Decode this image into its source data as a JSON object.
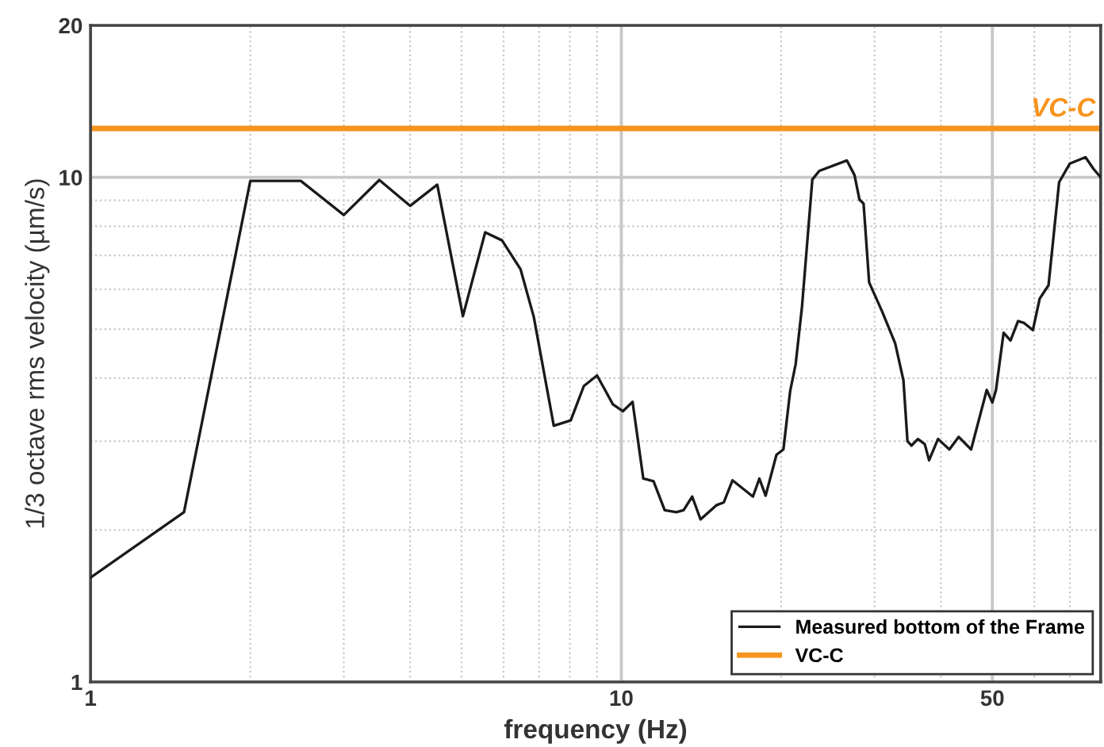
{
  "chart_data": {
    "type": "line",
    "xlabel": "frequency (Hz)",
    "ylabel": "1/3 octave rms velocity (µm/s)",
    "series": [
      {
        "name": "Measured bottom of the Frame",
        "color": "#1a1a1a",
        "x": [
          1,
          1.5,
          2.0,
          2.49,
          3.0,
          3.5,
          4.0,
          4.5,
          5.03,
          5.54,
          5.96,
          6.46,
          6.84,
          7.46,
          8.03,
          8.5,
          9.0,
          9.64,
          10.07,
          10.5,
          11.0,
          11.5,
          12.07,
          12.7,
          13.1,
          13.6,
          14.1,
          15.1,
          15.6,
          16.2,
          17.7,
          18.2,
          18.7,
          19.6,
          20.2,
          20.8,
          21.3,
          21.9,
          22.9,
          23.6,
          26.6,
          27.5,
          28.1,
          28.6,
          29.3,
          31.0,
          32.8,
          34.0,
          34.6,
          35.2,
          36.2,
          37.3,
          38.0,
          39.5,
          41.5,
          43.2,
          45.6,
          48.8,
          50.0,
          50.8,
          52.5,
          54.1,
          55.9,
          57.3,
          59.6,
          61.4,
          63.8,
          66.8,
          70.0,
          74.9,
          77.5,
          80
        ],
        "values": [
          1.61,
          2.17,
          9.84,
          9.84,
          8.42,
          9.88,
          8.78,
          9.67,
          5.31,
          7.78,
          7.5,
          6.57,
          5.29,
          3.22,
          3.3,
          3.86,
          4.05,
          3.55,
          3.44,
          3.59,
          2.53,
          2.5,
          2.19,
          2.17,
          2.19,
          2.33,
          2.1,
          2.24,
          2.27,
          2.51,
          2.33,
          2.53,
          2.34,
          2.82,
          2.89,
          3.77,
          4.26,
          5.55,
          9.9,
          10.3,
          10.8,
          10.1,
          9.03,
          8.87,
          6.19,
          5.42,
          4.69,
          3.96,
          3.0,
          2.94,
          3.03,
          2.96,
          2.75,
          3.03,
          2.89,
          3.06,
          2.89,
          3.79,
          3.58,
          3.79,
          4.92,
          4.75,
          5.19,
          5.15,
          4.98,
          5.75,
          6.11,
          9.78,
          10.65,
          10.96,
          10.4,
          10.0
        ]
      }
    ],
    "ref_lines": [
      {
        "axis": "y",
        "value": 12.5,
        "label": "VC-C",
        "color": "#f7941d"
      }
    ],
    "log": "xy",
    "xlim": [
      1,
      80
    ],
    "xticks": [
      1,
      {
        "value": 2,
        "label": null
      },
      {
        "value": 3,
        "label": null
      },
      {
        "value": 4,
        "label": null
      },
      {
        "value": 5,
        "label": null
      },
      {
        "value": 6,
        "label": null
      },
      {
        "value": 7,
        "label": null
      },
      {
        "value": 8,
        "label": null
      },
      {
        "value": 9,
        "label": null
      },
      10,
      {
        "value": 20,
        "label": null
      },
      {
        "value": 30,
        "label": null
      },
      {
        "value": 40,
        "label": null
      },
      50,
      {
        "value": 60,
        "label": null
      },
      {
        "value": 70,
        "label": null
      }
    ],
    "ylim": [
      1,
      20
    ],
    "yticks": [
      1,
      {
        "value": 2,
        "label": null
      },
      {
        "value": 3,
        "label": null
      },
      {
        "value": 4,
        "label": null
      },
      {
        "value": 5,
        "label": null
      },
      {
        "value": 6,
        "label": null
      },
      {
        "value": 7,
        "label": null
      },
      {
        "value": 8,
        "label": null
      },
      {
        "value": 9,
        "label": null
      },
      10,
      20
    ],
    "grid": true,
    "legend": "bottom right"
  }
}
